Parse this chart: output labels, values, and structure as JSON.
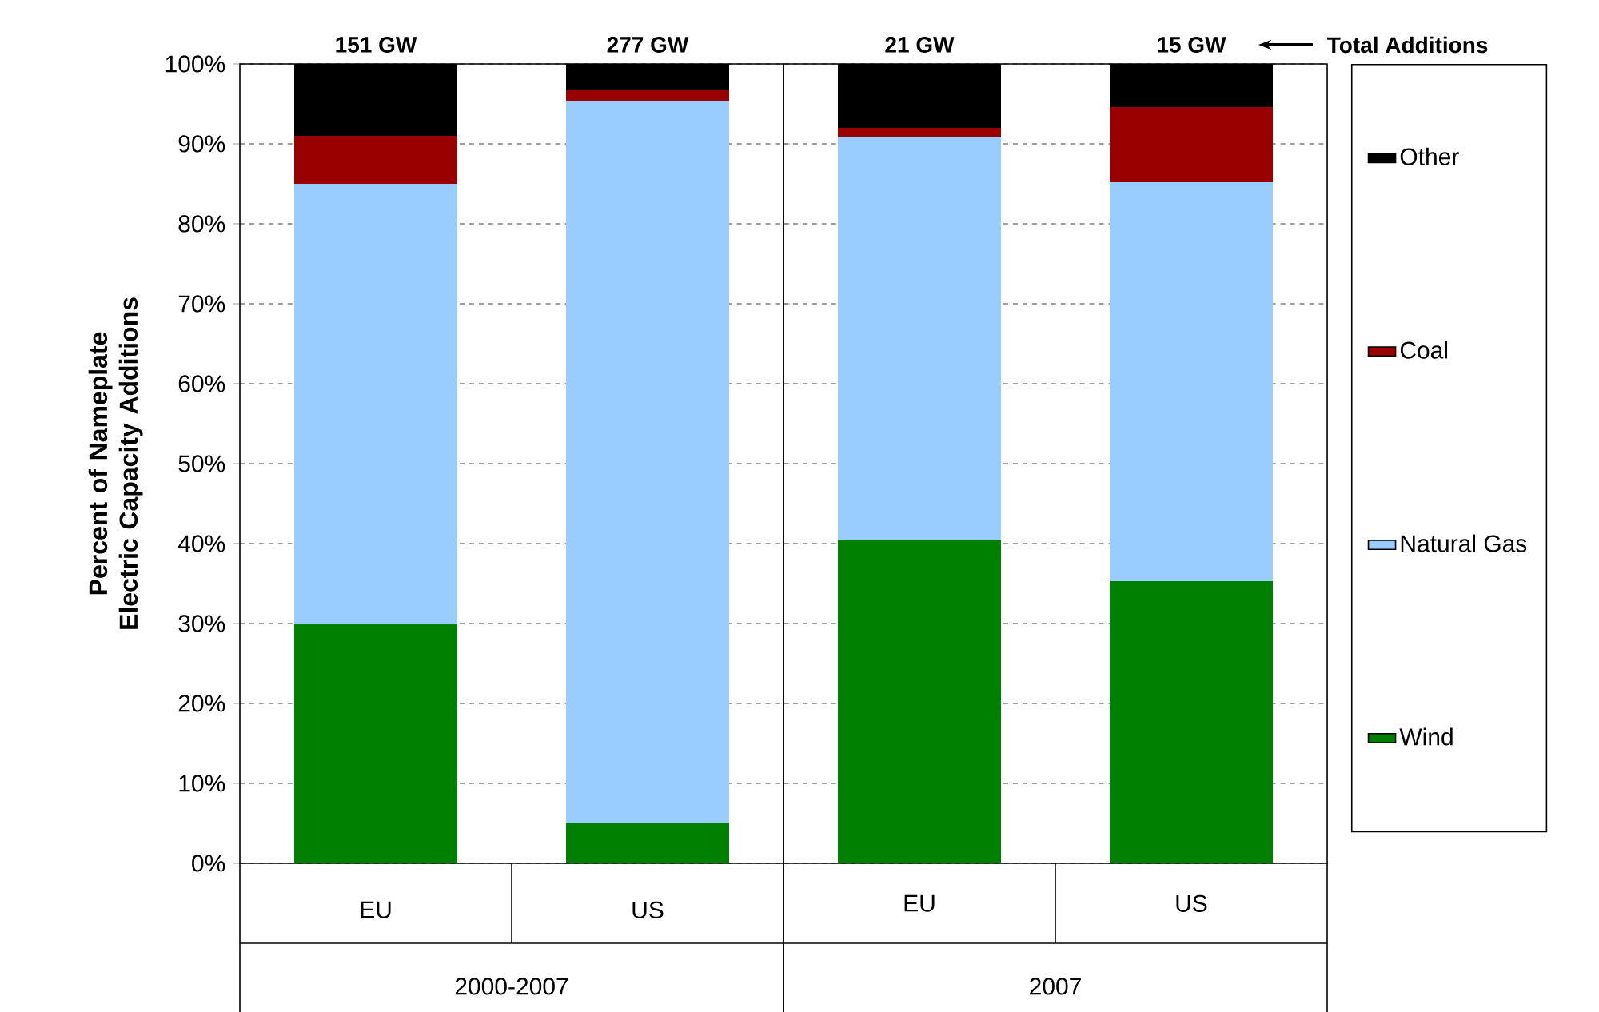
{
  "chart_data": [
    {
      "type": "bar",
      "stacked": true,
      "ylabel": "Percent of Nameplate Electric Capacity Additions",
      "xlabel": "2000-2007",
      "categories": [
        "EU",
        "US"
      ],
      "series": [
        {
          "color": "#008000",
          "values": [
            30,
            5
          ]
        },
        {
          "color": "#99ccff",
          "values": [
            55,
            90.4
          ]
        },
        {
          "color": "#990000",
          "values": [
            6,
            1.4
          ]
        },
        {
          "color": "#000000",
          "values": [
            9,
            3.2
          ]
        }
      ],
      "annotations": [
        "151 GW",
        "277 GW"
      ],
      "ylim": [
        0,
        100
      ],
      "yticks": [
        {
          "value": 0,
          "label": "0%"
        },
        {
          "value": 10,
          "label": "10%"
        },
        {
          "value": 20,
          "label": "20%"
        },
        {
          "value": 30,
          "label": "30%"
        },
        {
          "value": 40,
          "label": "40%"
        },
        {
          "value": 50,
          "label": "50%"
        },
        {
          "value": 60,
          "label": "60%"
        },
        {
          "value": 70,
          "label": "70%"
        },
        {
          "value": 80,
          "label": "80%"
        },
        {
          "value": 90,
          "label": "90%"
        },
        {
          "value": 100,
          "label": "100%"
        }
      ],
      "grid": "y"
    },
    {
      "type": "bar",
      "stacked": true,
      "xlabel": "2007",
      "categories": [
        "EU",
        "US"
      ],
      "series": [
        {
          "name": "Wind",
          "color": "#008000",
          "values": [
            40.4,
            35.3
          ]
        },
        {
          "name": "Natural Gas",
          "color": "#99ccff",
          "values": [
            50.4,
            49.9
          ]
        },
        {
          "name": "Coal",
          "color": "#990000",
          "values": [
            1.2,
            9.4
          ]
        },
        {
          "name": "Other",
          "color": "#000000",
          "values": [
            8.0,
            5.4
          ]
        }
      ],
      "annotations": [
        "21 GW",
        "15 GW",
        "Total Additions"
      ],
      "ylim": [
        0,
        100
      ],
      "yticks": [
        0,
        10,
        20,
        30,
        40,
        50,
        60,
        70,
        80,
        90,
        100
      ],
      "tick_labels": "x",
      "grid": "y",
      "legend": "right"
    }
  ]
}
